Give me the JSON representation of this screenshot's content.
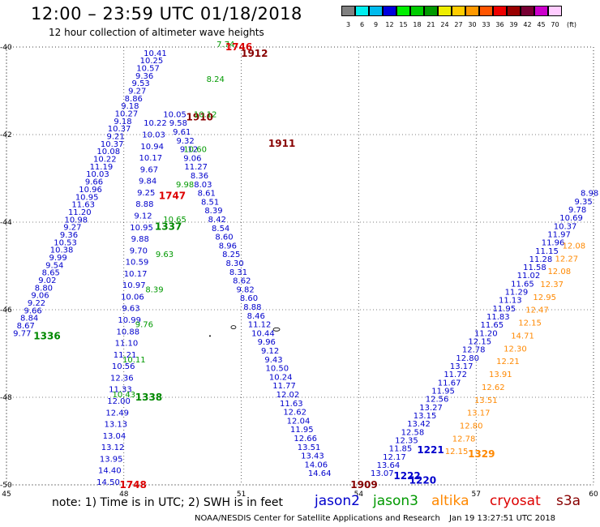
{
  "header": {
    "title": "12:00 – 23:59 UTC 01/18/2018",
    "subtitle": "12 hour collection of altimeter wave heights"
  },
  "color_scale": {
    "unit": "(ft)",
    "bins": [
      {
        "label": "3",
        "color": "#808080"
      },
      {
        "label": "6",
        "color": "#00eeee"
      },
      {
        "label": "9",
        "color": "#00bbee"
      },
      {
        "label": "12",
        "color": "#0000dd"
      },
      {
        "label": "15",
        "color": "#00ee00"
      },
      {
        "label": "18",
        "color": "#00cc00"
      },
      {
        "label": "21",
        "color": "#009900"
      },
      {
        "label": "24",
        "color": "#eeee00"
      },
      {
        "label": "27",
        "color": "#ffcc00"
      },
      {
        "label": "30",
        "color": "#ff9900"
      },
      {
        "label": "33",
        "color": "#ff5500"
      },
      {
        "label": "36",
        "color": "#ee0000"
      },
      {
        "label": "39",
        "color": "#990000"
      },
      {
        "label": "42",
        "color": "#770033"
      },
      {
        "label": "45",
        "color": "#cc00cc"
      },
      {
        "label": "70",
        "color": "#ffccff"
      }
    ]
  },
  "map": {
    "lon_min": 45,
    "lon_max": 60,
    "lat_min": -50,
    "lat_max": -40,
    "lon_ticks": [
      "45",
      "48",
      "51",
      "54",
      "57",
      "60"
    ],
    "lat_ticks": [
      "-40",
      "-42",
      "-44",
      "-46",
      "-48",
      "-50"
    ]
  },
  "tracks": [
    {
      "satellite": "jason2",
      "time_label": "1336",
      "color": "#0000cc",
      "time_color": "#008800",
      "start": [
        45.4,
        -46.6
      ],
      "end": [
        48.8,
        -40.2
      ],
      "values": [
        "9.77",
        "8.67",
        "8.84",
        "9.66",
        "9.22",
        "9.06",
        "8.80",
        "9.02",
        "8.65",
        "9.54",
        "9.99",
        "10.38",
        "10.53",
        "9.36",
        "9.27",
        "10.98",
        "11.20",
        "11.63",
        "10.95",
        "10.96",
        "9.66",
        "10.03",
        "11.19",
        "10.22",
        "10.08",
        "10.37",
        "9.21",
        "10.37",
        "9.18",
        "10.27",
        "9.18",
        "8.86",
        "9.27",
        "9.53",
        "9.36",
        "10.57",
        "10.25",
        "10.41"
      ]
    },
    {
      "satellite": "jason2",
      "time_label": "1748",
      "color": "#0000cc",
      "time_color": "#dd0000",
      "start": [
        47.6,
        -50.0
      ],
      "end": [
        48.8,
        -41.8
      ],
      "values": [
        "14.50",
        "14.40",
        "13.95",
        "13.12",
        "13.04",
        "13.13",
        "12.49",
        "12.00",
        "11.33",
        "12.36",
        "10.56",
        "11.21",
        "11.10",
        "10.88",
        "10.99",
        "9.63",
        "10.06",
        "10.97",
        "10.17",
        "10.59",
        "9.70",
        "9.88",
        "10.95",
        "9.12",
        "8.88",
        "9.25",
        "9.84",
        "9.67",
        "10.17",
        "10.94",
        "10.03",
        "10.22"
      ]
    },
    {
      "satellite": "jason2",
      "time_label": "1910",
      "color": "#0000cc",
      "time_color": "#880000",
      "start": [
        49.3,
        -41.6
      ],
      "end": [
        53.0,
        -49.8
      ],
      "values": [
        "10.05",
        "9.58",
        "9.61",
        "9.32",
        "9.12",
        "9.06",
        "11.27",
        "8.36",
        "8.03",
        "8.61",
        "8.51",
        "8.39",
        "8.42",
        "8.54",
        "8.60",
        "8.96",
        "8.25",
        "8.30",
        "8.31",
        "8.62",
        "9.82",
        "8.60",
        "8.88",
        "8.46",
        "11.12",
        "10.44",
        "9.96",
        "9.12",
        "9.43",
        "10.50",
        "10.24",
        "11.77",
        "12.02",
        "11.63",
        "12.62",
        "12.04",
        "11.95",
        "12.66",
        "13.51",
        "13.43",
        "14.06",
        "14.64"
      ]
    },
    {
      "satellite": "jason2",
      "time_label": "1222",
      "color": "#0000cc",
      "time_color": "#0000cc",
      "start": [
        54.6,
        -49.8
      ],
      "end": [
        59.9,
        -43.4
      ],
      "values": [
        "13.07",
        "13.64",
        "12.17",
        "11.85",
        "12.35",
        "12.58",
        "13.42",
        "13.15",
        "13.27",
        "12.56",
        "11.95",
        "11.67",
        "11.72",
        "13.17",
        "12.80",
        "12.78",
        "12.15",
        "11.20",
        "11.65",
        "11.83",
        "11.95",
        "11.13",
        "11.29",
        "11.65",
        "11.02",
        "11.58",
        "11.28",
        "11.15",
        "11.96",
        "11.97",
        "10.37",
        "10.69",
        "9.78",
        "9.35",
        "8.98"
      ]
    },
    {
      "satellite": "jason3",
      "time_label": "1338",
      "color": "#009900",
      "time_color": "#008800",
      "start": [
        48.0,
        -48.0
      ],
      "end": [
        50.6,
        -40.0
      ],
      "values": [
        "10.43",
        "10.11",
        "9.76",
        "8.39",
        "9.63",
        "10.65",
        "9.98",
        "10.60",
        "10.12",
        "8.24",
        "7.74"
      ]
    },
    {
      "satellite": "altika",
      "time_label": "1329",
      "color": "#ff8800",
      "time_color": "#ff8800",
      "start": [
        56.5,
        -49.3
      ],
      "end": [
        59.5,
        -44.6
      ],
      "values": [
        "12.15",
        "12.78",
        "12.80",
        "13.17",
        "13.51",
        "12.62",
        "13.91",
        "12.21",
        "12.30",
        "14.71",
        "12.15",
        "12.47",
        "12.95",
        "12.37",
        "12.08",
        "12.27",
        "12.08"
      ]
    },
    {
      "satellite": "cryosat",
      "time_label": "1746",
      "color": "#dd0000",
      "time_color": "#dd0000",
      "start": [
        50.3,
        -40.0
      ],
      "end": [
        50.3,
        -40.0
      ],
      "values": []
    },
    {
      "satellite": "s3a",
      "time_label": "1909",
      "color": "#880000",
      "time_color": "#880000",
      "start": [
        53.5,
        -50.0
      ],
      "end": [
        53.5,
        -50.0
      ],
      "values": []
    },
    {
      "satellite": "jason3",
      "time_label": "1221",
      "color": "#009900",
      "time_color": "#0000cc",
      "start": [
        55.2,
        -49.2
      ],
      "end": [
        55.2,
        -49.2
      ],
      "values": []
    },
    {
      "satellite": "jason3",
      "time_label": "1220",
      "color": "#009900",
      "time_color": "#0000cc",
      "start": [
        55.0,
        -49.9
      ],
      "end": [
        55.0,
        -49.9
      ],
      "values": []
    },
    {
      "satellite": "jason3",
      "time_label": "1747",
      "color": "#009900",
      "time_color": "#dd0000",
      "start": [
        48.6,
        -43.4
      ],
      "end": [
        48.6,
        -43.4
      ],
      "values": []
    },
    {
      "satellite": "jason3",
      "time_label": "1911",
      "color": "#009900",
      "time_color": "#880000",
      "start": [
        51.4,
        -42.2
      ],
      "end": [
        51.4,
        -42.2
      ],
      "values": []
    },
    {
      "satellite": "jason3",
      "time_label": "1912",
      "color": "#009900",
      "time_color": "#880000",
      "start": [
        50.7,
        -40.15
      ],
      "end": [
        50.7,
        -40.15
      ],
      "values": []
    },
    {
      "satellite": "jason3",
      "time_label": "1337",
      "color": "#009900",
      "time_color": "#008800",
      "start": [
        48.5,
        -44.1
      ],
      "end": [
        48.5,
        -44.1
      ],
      "values": []
    }
  ],
  "footer": {
    "note": "note: 1) Time is in UTC; 2) SWH is in feet",
    "legend": [
      {
        "name": "jason2",
        "color": "#0000cc"
      },
      {
        "name": "jason3",
        "color": "#009900"
      },
      {
        "name": "altika",
        "color": "#ff8800"
      },
      {
        "name": "cryosat",
        "color": "#dd0000"
      },
      {
        "name": "s3a",
        "color": "#880000"
      }
    ],
    "credit": "NOAA/NESDIS Center for Satellite Applications and Research",
    "timestamp": "Jan 19 13:27:51 UTC 2018"
  }
}
